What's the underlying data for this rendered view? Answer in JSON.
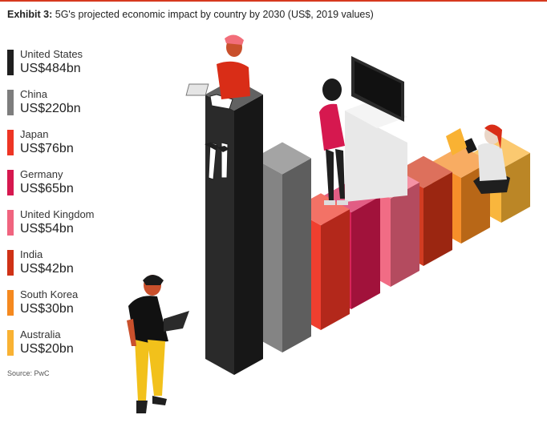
{
  "header": {
    "exhibit_label": "Exhibit 3:",
    "title": "5G's projected economic impact by country by 2030 (US$, 2019 values)"
  },
  "source": "Source: PwC",
  "colors": {
    "accent_line": "#d6391f"
  },
  "chart_data": {
    "type": "bar",
    "title": "5G's projected economic impact by country by 2030 (US$, 2019 values)",
    "unit": "US$bn",
    "categories": [
      "United States",
      "China",
      "Japan",
      "Germany",
      "United Kingdom",
      "India",
      "South Korea",
      "Australia"
    ],
    "values": [
      484,
      220,
      76,
      65,
      54,
      42,
      30,
      20
    ],
    "value_labels": [
      "US$484bn",
      "US$220bn",
      "US$76bn",
      "US$65bn",
      "US$54bn",
      "US$42bn",
      "US$30bn",
      "US$20bn"
    ],
    "colors": [
      "#1f1f1f",
      "#7d7d7d",
      "#ee3524",
      "#d6184f",
      "#f0647f",
      "#cf3216",
      "#f5891f",
      "#f9b233"
    ],
    "legend_position": "left",
    "grid": false,
    "style": "isometric 3d bars with illustrated people"
  }
}
